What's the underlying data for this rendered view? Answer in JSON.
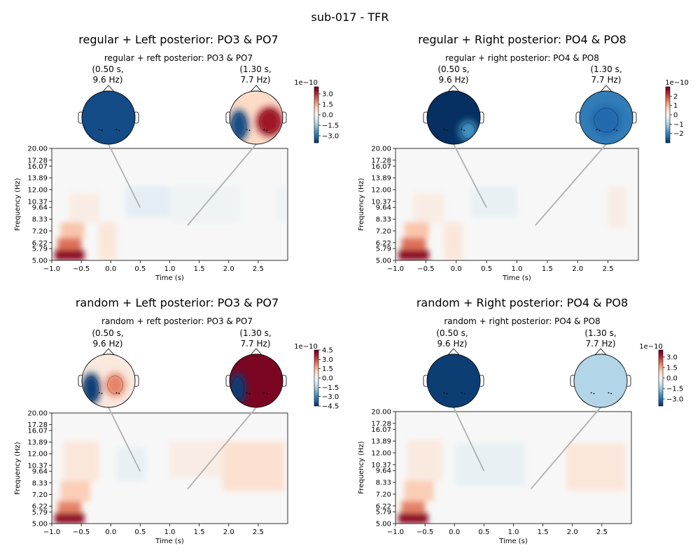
{
  "figure": {
    "suptitle": "sub-017 - TFR"
  },
  "colors": {
    "cmap": [
      "#053061",
      "#2166ac",
      "#4393c3",
      "#92c5de",
      "#d1e5f0",
      "#f7f7f7",
      "#fddbc7",
      "#f4a582",
      "#d6604d",
      "#b2182b",
      "#67001f"
    ],
    "connector": "#b0b0b0",
    "axis": "#000000"
  },
  "chart_data": [
    {
      "type": "heatmap",
      "title": "regular + Left posterior: PO3 & PO7",
      "subtitle": "regular + reft posterior: PO3 & PO7",
      "xlabel": "Time (s)",
      "ylabel": "Frequency (Hz)",
      "xlim": [
        -1.0,
        3.0
      ],
      "xticks": [
        -1.0,
        -0.5,
        0.0,
        0.5,
        1.0,
        1.5,
        2.0,
        2.5
      ],
      "xtick_labels": [
        "−1.0",
        "−0.5",
        "0.0",
        "0.5",
        "1.0",
        "1.5",
        "2.0",
        "2.5"
      ],
      "yticks": [
        5.0,
        5.79,
        6.22,
        7.2,
        8.33,
        9.64,
        10.37,
        12.0,
        13.89,
        16.07,
        17.28,
        20.0
      ],
      "ytick_labels": [
        "5.00",
        "5.79",
        "6.22",
        "7.20",
        "8.33",
        "9.64",
        "10.37",
        "12.00",
        "13.89",
        "16.07",
        "17.28",
        "20.00"
      ],
      "yscale": "log",
      "topomaps": [
        {
          "time": 0.5,
          "freq": 9.6,
          "label_line1": "(0.50 s,",
          "label_line2": "9.6 Hz)"
        },
        {
          "time": 1.3,
          "freq": 7.7,
          "label_line1": "(1.30 s,",
          "label_line2": "7.7 Hz)"
        }
      ],
      "colorbar": {
        "exponent": "1e−10",
        "vmin": -4.0,
        "vmax": 4.0,
        "ticks": [
          3.0,
          1.5,
          0.0,
          -1.5,
          -3.0
        ],
        "tick_labels": [
          "3.0",
          "1.5",
          "0.0",
          "−1.5",
          "−3.0"
        ]
      },
      "patches": [
        {
          "t0": -0.95,
          "t1": -0.45,
          "f0": 5.0,
          "f1": 5.7,
          "v": 0.9
        },
        {
          "t0": -0.9,
          "t1": -0.5,
          "f0": 5.7,
          "f1": 6.6,
          "v": 0.55
        },
        {
          "t0": -0.85,
          "t1": -0.45,
          "f0": 6.6,
          "f1": 8.0,
          "v": 0.28
        },
        {
          "t0": -0.7,
          "t1": -0.2,
          "f0": 8.0,
          "f1": 11.5,
          "v": 0.08
        },
        {
          "t0": -0.2,
          "t1": 0.1,
          "f0": 5.0,
          "f1": 8.0,
          "v": 0.12
        },
        {
          "t0": 0.25,
          "t1": 1.0,
          "f0": 8.5,
          "f1": 12.5,
          "v": -0.1
        },
        {
          "t0": 1.0,
          "t1": 2.2,
          "f0": 8.0,
          "f1": 12.5,
          "v": -0.05
        },
        {
          "t0": 2.8,
          "t1": 3.0,
          "f0": 8.0,
          "f1": 12.5,
          "v": -0.05
        }
      ],
      "heads": [
        {
          "base": -0.9,
          "blobs": []
        },
        {
          "base": 0.2,
          "blobs": [
            {
              "cx": 0.5,
              "cy": 0.15,
              "rx": 0.5,
              "ry": 0.55,
              "v": 0.85
            },
            {
              "cx": -0.65,
              "cy": 0.3,
              "rx": 0.35,
              "ry": 0.6,
              "v": -0.9
            }
          ]
        }
      ]
    },
    {
      "type": "heatmap",
      "title": "regular + Right posterior: PO4 & PO8",
      "subtitle": "regular + right posterior: PO4 & PO8",
      "xlabel": "Time (s)",
      "ylabel": "Frequency (Hz)",
      "xlim": [
        -1.0,
        3.0
      ],
      "xticks": [
        -1.0,
        -0.5,
        0.0,
        0.5,
        1.0,
        1.5,
        2.0,
        2.5
      ],
      "xtick_labels": [
        "−1.0",
        "−0.5",
        "0.0",
        "0.5",
        "1.0",
        "1.5",
        "2.0",
        "2.5"
      ],
      "yticks": [
        5.0,
        5.79,
        6.22,
        7.2,
        8.33,
        9.64,
        10.37,
        12.0,
        13.89,
        16.07,
        17.28,
        20.0
      ],
      "ytick_labels": [
        "5.00",
        "5.79",
        "6.22",
        "7.20",
        "8.33",
        "9.64",
        "10.37",
        "12.00",
        "13.89",
        "16.07",
        "17.28",
        "20.00"
      ],
      "yscale": "log",
      "topomaps": [
        {
          "time": 0.5,
          "freq": 9.6,
          "label_line1": "(0.50 s,",
          "label_line2": "9.6 Hz)"
        },
        {
          "time": 1.3,
          "freq": 7.7,
          "label_line1": "(1.30 s,",
          "label_line2": "7.7 Hz)"
        }
      ],
      "colorbar": {
        "exponent": "1e−10",
        "vmin": -3.0,
        "vmax": 3.0,
        "ticks": [
          2,
          1,
          0,
          -1,
          -2
        ],
        "tick_labels": [
          "2",
          "1",
          "0",
          "−1",
          "−2"
        ]
      },
      "patches": [
        {
          "t0": -0.95,
          "t1": -0.45,
          "f0": 5.0,
          "f1": 5.7,
          "v": 0.9
        },
        {
          "t0": -0.9,
          "t1": -0.5,
          "f0": 5.7,
          "f1": 6.6,
          "v": 0.55
        },
        {
          "t0": -0.85,
          "t1": -0.45,
          "f0": 6.6,
          "f1": 8.0,
          "v": 0.28
        },
        {
          "t0": -0.7,
          "t1": -0.2,
          "f0": 8.0,
          "f1": 11.5,
          "v": 0.08
        },
        {
          "t0": -0.2,
          "t1": 0.1,
          "f0": 5.0,
          "f1": 8.0,
          "v": 0.12
        },
        {
          "t0": 0.25,
          "t1": 1.0,
          "f0": 8.5,
          "f1": 12.5,
          "v": -0.08
        },
        {
          "t0": 2.5,
          "t1": 2.8,
          "f0": 7.5,
          "f1": 12.5,
          "v": 0.08
        }
      ],
      "heads": [
        {
          "base": -1.0,
          "blobs": [
            {
              "cx": 0.55,
              "cy": 0.5,
              "rx": 0.35,
              "ry": 0.4,
              "v": -0.6
            }
          ]
        },
        {
          "base": -0.7,
          "blobs": [
            {
              "cx": 0.0,
              "cy": 0.1,
              "rx": 0.6,
              "ry": 0.6,
              "v": -0.78
            }
          ]
        }
      ]
    },
    {
      "type": "heatmap",
      "title": "random + Left posterior: PO3 & PO7",
      "subtitle": "random + reft posterior: PO3 & PO7",
      "xlabel": "Time (s)",
      "ylabel": "Frequency (Hz)",
      "xlim": [
        -1.0,
        3.0
      ],
      "xticks": [
        -1.0,
        -0.5,
        0.0,
        0.5,
        1.0,
        1.5,
        2.0,
        2.5
      ],
      "xtick_labels": [
        "−1.0",
        "−0.5",
        "0.0",
        "0.5",
        "1.0",
        "1.5",
        "2.0",
        "2.5"
      ],
      "yticks": [
        5.0,
        5.79,
        6.22,
        7.2,
        8.33,
        9.64,
        10.37,
        12.0,
        13.89,
        16.07,
        17.28,
        20.0
      ],
      "ytick_labels": [
        "5.00",
        "5.79",
        "6.22",
        "7.20",
        "8.33",
        "9.64",
        "10.37",
        "12.00",
        "13.89",
        "16.07",
        "17.28",
        "20.00"
      ],
      "yscale": "log",
      "topomaps": [
        {
          "time": 0.5,
          "freq": 9.6,
          "label_line1": "(0.50 s,",
          "label_line2": "9.6 Hz)"
        },
        {
          "time": 1.3,
          "freq": 7.7,
          "label_line1": "(1.30 s,",
          "label_line2": "7.7 Hz)"
        }
      ],
      "colorbar": {
        "exponent": "1e−10",
        "vmin": -4.5,
        "vmax": 4.5,
        "ticks": [
          4.5,
          3.0,
          1.5,
          0.0,
          -1.5,
          -3.0,
          -4.5
        ],
        "tick_labels": [
          "4.5",
          "3.0",
          "1.5",
          "0.0",
          "−1.5",
          "−3.0",
          "−4.5"
        ]
      },
      "patches": [
        {
          "t0": -0.95,
          "t1": -0.45,
          "f0": 5.0,
          "f1": 5.7,
          "v": 0.9
        },
        {
          "t0": -0.9,
          "t1": -0.5,
          "f0": 5.7,
          "f1": 6.6,
          "v": 0.5
        },
        {
          "t0": -0.85,
          "t1": -0.35,
          "f0": 6.6,
          "f1": 8.5,
          "v": 0.25
        },
        {
          "t0": -0.8,
          "t1": -0.2,
          "f0": 8.5,
          "f1": 14.0,
          "v": 0.12
        },
        {
          "t0": 0.1,
          "t1": 0.6,
          "f0": 8.5,
          "f1": 13.0,
          "v": -0.08
        },
        {
          "t0": 1.0,
          "t1": 1.9,
          "f0": 9.0,
          "f1": 14.0,
          "v": 0.08
        },
        {
          "t0": 1.9,
          "t1": 2.95,
          "f0": 7.5,
          "f1": 14.0,
          "v": 0.16
        }
      ],
      "heads": [
        {
          "base": 0.1,
          "blobs": [
            {
              "cx": 0.25,
              "cy": 0.15,
              "rx": 0.38,
              "ry": 0.45,
              "v": 0.5
            },
            {
              "cx": -0.65,
              "cy": 0.3,
              "rx": 0.35,
              "ry": 0.6,
              "v": -0.95
            }
          ]
        },
        {
          "base": 0.95,
          "blobs": [
            {
              "cx": -0.7,
              "cy": 0.3,
              "rx": 0.32,
              "ry": 0.6,
              "v": -0.95
            }
          ]
        }
      ]
    },
    {
      "type": "heatmap",
      "title": "random + Right posterior: PO4 & PO8",
      "subtitle": "random + right posterior: PO4 & PO8",
      "xlabel": "Time (s)",
      "ylabel": "Frequency (Hz)",
      "xlim": [
        -1.0,
        3.0
      ],
      "xticks": [
        -1.0,
        -0.5,
        0.0,
        0.5,
        1.0,
        1.5,
        2.0,
        2.5
      ],
      "xtick_labels": [
        "−1.0",
        "−0.5",
        "0.0",
        "0.5",
        "1.0",
        "1.5",
        "2.0",
        "2.5"
      ],
      "yticks": [
        5.0,
        5.79,
        6.22,
        7.2,
        8.33,
        9.64,
        10.37,
        12.0,
        13.89,
        16.07,
        17.28,
        20.0
      ],
      "ytick_labels": [
        "5.00",
        "5.79",
        "6.22",
        "7.20",
        "8.33",
        "9.64",
        "10.37",
        "12.00",
        "13.89",
        "16.07",
        "17.28",
        "20.00"
      ],
      "yscale": "log",
      "topomaps": [
        {
          "time": 0.5,
          "freq": 9.6,
          "label_line1": "(0.50 s,",
          "label_line2": "9.6 Hz)"
        },
        {
          "time": 1.3,
          "freq": 7.7,
          "label_line1": "(1.30 s,",
          "label_line2": "7.7 Hz)"
        }
      ],
      "colorbar": {
        "exponent": "1e−10",
        "vmin": -4.0,
        "vmax": 4.0,
        "ticks": [
          3.0,
          1.5,
          0.0,
          -1.5,
          -3.0
        ],
        "tick_labels": [
          "3.0",
          "1.5",
          "0.0",
          "−1.5",
          "−3.0"
        ]
      },
      "patches": [
        {
          "t0": -0.95,
          "t1": -0.45,
          "f0": 5.0,
          "f1": 5.7,
          "v": 0.9
        },
        {
          "t0": -0.9,
          "t1": -0.5,
          "f0": 5.7,
          "f1": 6.6,
          "v": 0.5
        },
        {
          "t0": -0.85,
          "t1": -0.35,
          "f0": 6.6,
          "f1": 8.5,
          "v": 0.25
        },
        {
          "t0": -0.8,
          "t1": -0.2,
          "f0": 8.5,
          "f1": 14.0,
          "v": 0.1
        },
        {
          "t0": 0.0,
          "t1": 1.2,
          "f0": 8.0,
          "f1": 13.5,
          "v": -0.08
        },
        {
          "t0": 1.9,
          "t1": 2.9,
          "f0": 7.5,
          "f1": 13.5,
          "v": 0.12
        }
      ],
      "heads": [
        {
          "base": -0.95,
          "blobs": []
        },
        {
          "base": -0.3,
          "blobs": []
        }
      ]
    }
  ]
}
